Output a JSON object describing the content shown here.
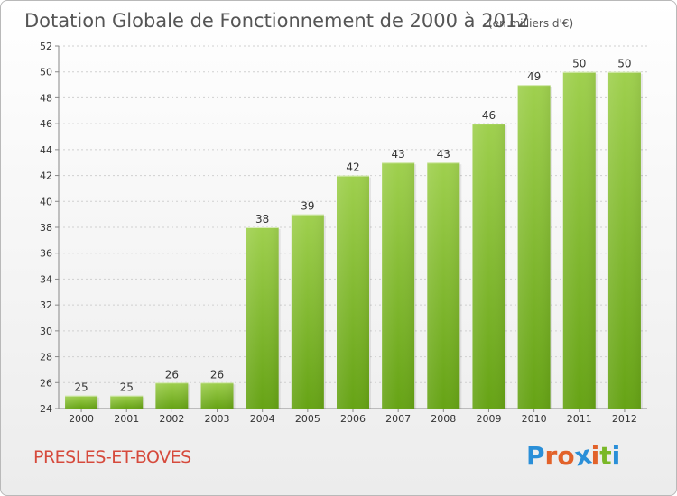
{
  "chart_data": {
    "type": "bar",
    "title": "Dotation Globale de Fonctionnement de 2000 à 2012",
    "subtitle": "(en milliers d'€)",
    "categories": [
      "2000",
      "2001",
      "2002",
      "2003",
      "2004",
      "2005",
      "2006",
      "2007",
      "2008",
      "2009",
      "2010",
      "2011",
      "2012"
    ],
    "values": [
      25,
      25,
      26,
      26,
      38,
      39,
      42,
      43,
      43,
      46,
      49,
      50,
      50
    ],
    "ylim": [
      24,
      52
    ],
    "yticks": [
      24,
      26,
      28,
      30,
      32,
      34,
      36,
      38,
      40,
      42,
      44,
      46,
      48,
      50,
      52
    ],
    "grid": true,
    "bar_color_top": "#9fd04e",
    "bar_color_bottom": "#66a315"
  },
  "place_name": "PRESLES-ET-BOVES",
  "brand": {
    "letters": [
      "P",
      "r",
      "o",
      "x",
      "i",
      "t",
      "i"
    ],
    "colors": [
      "#2a8fd8",
      "#e2622a",
      "#e2622a",
      "#2a8fd8",
      "#e2622a",
      "#7ab828",
      "#2a8fd8"
    ]
  }
}
